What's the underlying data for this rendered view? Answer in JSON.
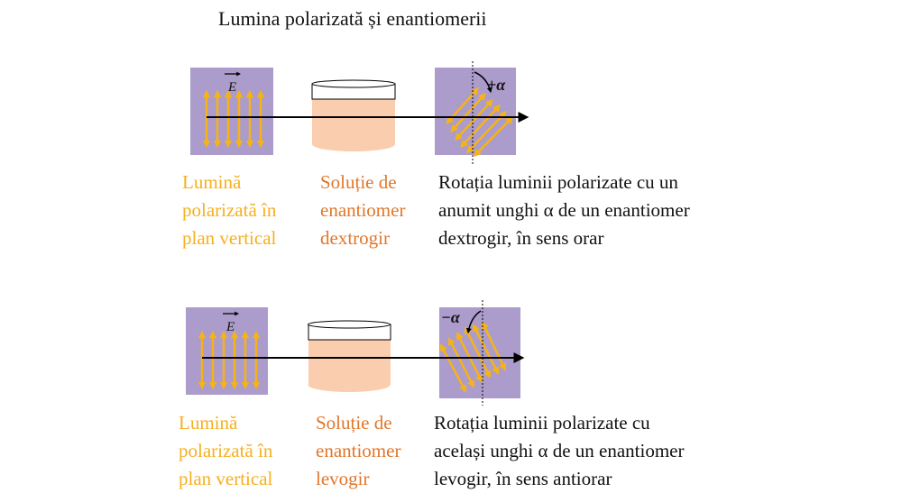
{
  "title": "Lumina polarizată și enantiomerii",
  "colors": {
    "square": "#ab9ccb",
    "arrows": "#f7b315",
    "solution": "#f9cdad",
    "cap": "#ffffff",
    "beam": "#000000",
    "label_yellow": "#f5b01e",
    "label_orange": "#e0772b"
  },
  "rows": [
    {
      "e_label": "E",
      "angle_label": "+α",
      "rotation": "clockwise",
      "light_label": "Lumină\npolarizată în\nplan vertical",
      "solution_label": "Soluție de\nenantiomer\ndextrogir",
      "rotation_text": "Rotația luminii polarizate cu un\nanumit unghi α de un enantiomer\ndextrogir, în sens orar"
    },
    {
      "e_label": "E",
      "angle_label": "−α",
      "rotation": "counterclockwise",
      "light_label": "Lumină\npolarizată în\nplan vertical",
      "solution_label": "Soluție de\nenantiomer\nlevogir",
      "rotation_text": "Rotația luminii polarizate cu\nacelași unghi α de un enantiomer\nlevogir, în sens antiorar"
    }
  ]
}
